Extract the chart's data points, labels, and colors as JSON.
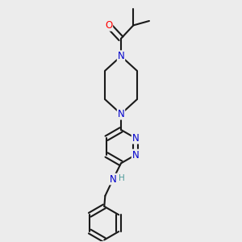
{
  "background_color": "#ececec",
  "bond_color": "#1a1a1a",
  "bond_width": 1.5,
  "atom_colors": {
    "O": "#ff0000",
    "N": "#0000cc",
    "H": "#4a9999",
    "C": "#1a1a1a"
  },
  "font_size": 8.5,
  "fig_width": 3.0,
  "fig_height": 3.0,
  "dpi": 100
}
